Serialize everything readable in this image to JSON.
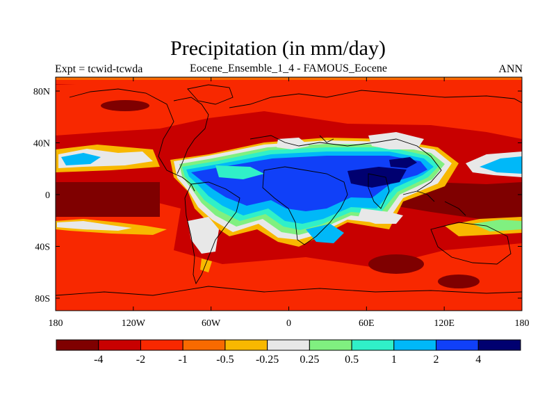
{
  "title": "Precipitation (in mm/day)",
  "subtitle_left": "Expt = tcwid-tcwda",
  "subtitle_center": "Eocene_Ensemble_1_4 - FAMOUS_Eocene",
  "subtitle_right": "ANN",
  "colors": [
    "#7f0000",
    "#c80000",
    "#f82800",
    "#f86a00",
    "#f8b800",
    "#e8e8e8",
    "#80f080",
    "#30f0c8",
    "#00b8f8",
    "#1040f8",
    "#000070"
  ],
  "legend_labels": [
    "-4",
    "-2",
    "-1",
    "-0.5",
    "-0.25",
    "0.25",
    "0.5",
    "1",
    "2",
    "4"
  ],
  "x_ticks": [
    "180",
    "120W",
    "60W",
    "0",
    "60E",
    "120E",
    "180"
  ],
  "y_ticks": [
    "80N",
    "40N",
    "0",
    "40S",
    "80S"
  ],
  "chart_data": {
    "type": "heatmap",
    "title": "Precipitation (in mm/day)",
    "variable": "Precipitation",
    "units": "mm/day",
    "difference": "Eocene_Ensemble_1_4 - FAMOUS_Eocene",
    "experiment": "tcwid-tcwda",
    "season": "ANN",
    "x_range": [
      -180,
      180
    ],
    "y_range": [
      -90,
      90
    ],
    "contour_levels": [
      -4,
      -2,
      -1,
      -0.5,
      -0.25,
      0.25,
      0.5,
      1,
      2,
      4
    ],
    "regions": [
      {
        "lon": [
          -180,
          180
        ],
        "lat": [
          -90,
          90
        ],
        "class": 1
      },
      {
        "lon": [
          -180,
          -130
        ],
        "lat": [
          -10,
          16
        ],
        "class": 0
      },
      {
        "lon": [
          -70,
          -25
        ],
        "lat": [
          15,
          30
        ],
        "class": 9
      },
      {
        "lon": [
          40,
          85
        ],
        "lat": [
          10,
          26
        ],
        "class": 10
      },
      {
        "lon": [
          -170,
          -150
        ],
        "lat": [
          28,
          40
        ],
        "class": 8
      },
      {
        "lon": [
          -35,
          -5
        ],
        "lat": [
          -20,
          0
        ],
        "class": 8
      },
      {
        "lon": [
          -80,
          -55
        ],
        "lat": [
          -50,
          -30
        ],
        "class": 5
      }
    ]
  }
}
